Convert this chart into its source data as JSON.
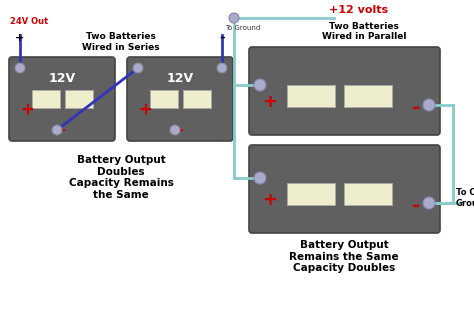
{
  "bg_color": "#ffffff",
  "battery_color": "#606060",
  "terminal_color": "#aaaacc",
  "cell_color": "#eeeecc",
  "wire_blue": "#3333bb",
  "wire_cyan": "#88cccc",
  "red": "#cc0000",
  "label_series": "Two Batteries\nWired in Series",
  "label_parallel": "Two Batteries\nWired in Parallel",
  "label_24v": "24V Out",
  "label_to_ground": "To Ground",
  "label_chassis": "To Chassis\nGround",
  "caption_left": "Battery Output\nDoubles\nCapacity Remains\nthe Same",
  "caption_right": "Battery Output\nRemains the Same\nCapacity Doubles",
  "volt_label": "12V",
  "volts_title": "+12 volts",
  "plus": "+",
  "minus": "–"
}
